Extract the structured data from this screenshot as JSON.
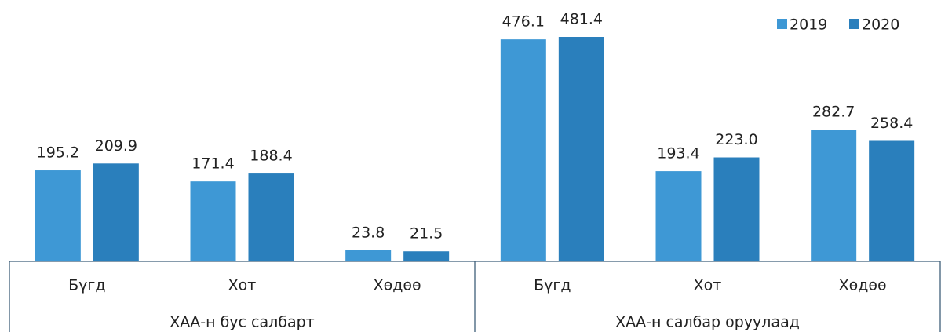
{
  "chart_data": {
    "type": "bar",
    "groups": [
      {
        "name": "ХАА-н бус салбарт",
        "categories": [
          "Бүгд",
          "Хот",
          "Хөдөө"
        ]
      },
      {
        "name": "ХАА-н салбар оруулаад",
        "categories": [
          "Бүгд",
          "Хот",
          "Хөдөө"
        ]
      }
    ],
    "series": [
      {
        "name": "2019",
        "color": "#3e98d5",
        "values": [
          195.2,
          171.4,
          23.8,
          476.1,
          193.4,
          282.7
        ],
        "value_labels": [
          "195.2",
          "171.4",
          "23.8",
          "476.1",
          "193.4",
          "282.7"
        ]
      },
      {
        "name": "2020",
        "color": "#2a7fbc",
        "values": [
          209.9,
          188.4,
          21.5,
          481.4,
          223,
          258.4
        ],
        "value_labels": [
          "209.9",
          "188.4",
          "21.5",
          "481.4",
          "223.0",
          "258.4"
        ]
      }
    ],
    "legend": "top-right"
  }
}
